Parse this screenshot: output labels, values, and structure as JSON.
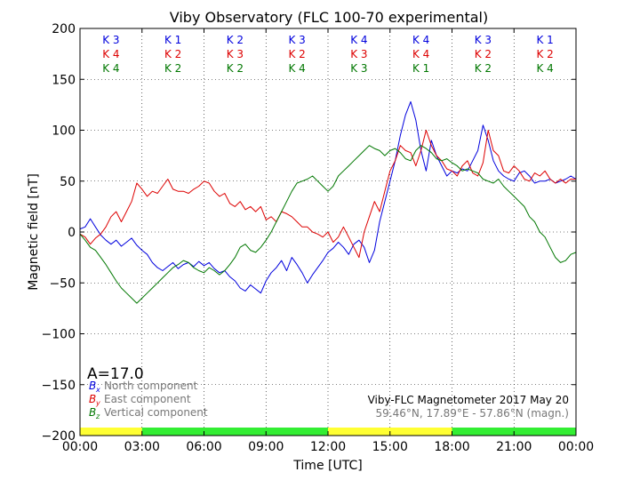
{
  "chart_data": {
    "type": "line",
    "title": "Viby Observatory (FLC 100-70 experimental)",
    "xlabel": "Time [UTC]",
    "ylabel": "Magnetic field [nT]",
    "xlim": [
      0,
      24
    ],
    "ylim": [
      -200,
      200
    ],
    "x_ticks": [
      0,
      3,
      6,
      9,
      12,
      15,
      18,
      21,
      24
    ],
    "x_tick_labels": [
      "00:00",
      "03:00",
      "06:00",
      "09:00",
      "12:00",
      "15:00",
      "18:00",
      "21:00",
      "00:00"
    ],
    "y_ticks": [
      -200,
      -150,
      -100,
      -50,
      0,
      50,
      100,
      150,
      200
    ],
    "y_tick_labels": [
      "−200",
      "−150",
      "−100",
      "−50",
      "0",
      "50",
      "100",
      "150",
      "200"
    ],
    "grid": true,
    "a_index": "A=17.0",
    "legend": [
      {
        "symbol": "B",
        "sub": "x",
        "label": "North component",
        "color": "#0000dd"
      },
      {
        "symbol": "B",
        "sub": "y",
        "label": "East component",
        "color": "#dd0000"
      },
      {
        "symbol": "B",
        "sub": "z",
        "label": "Vertical component",
        "color": "#007700"
      }
    ],
    "footer_line1": "Viby-FLC Magnetometer 2017 May 20",
    "footer_line2": "59.46°N, 17.89°E - 57.86°N (magn.)",
    "k_index": {
      "rows": [
        {
          "component": "x",
          "color": "#0000dd",
          "values": [
            "K 3",
            "K 1",
            "K 2",
            "K 3",
            "K 4",
            "K 4",
            "K 3",
            "K 1"
          ]
        },
        {
          "component": "y",
          "color": "#dd0000",
          "values": [
            "K 4",
            "K 2",
            "K 3",
            "K 2",
            "K 3",
            "K 4",
            "K 2",
            "K 2"
          ]
        },
        {
          "component": "z",
          "color": "#007700",
          "values": [
            "K 4",
            "K 2",
            "K 2",
            "K 4",
            "K 3",
            "K 1",
            "K 2",
            "K 4"
          ]
        }
      ]
    },
    "activity_bar": [
      {
        "from": 0,
        "to": 3,
        "color": "#ffff33"
      },
      {
        "from": 3,
        "to": 12,
        "color": "#33ee33"
      },
      {
        "from": 12,
        "to": 18,
        "color": "#ffff33"
      },
      {
        "from": 18,
        "to": 24,
        "color": "#33ee33"
      }
    ],
    "series": [
      {
        "name": "North component",
        "color": "#0000dd",
        "x": [
          0,
          0.25,
          0.5,
          0.75,
          1,
          1.25,
          1.5,
          1.75,
          2,
          2.25,
          2.5,
          2.75,
          3,
          3.25,
          3.5,
          3.75,
          4,
          4.25,
          4.5,
          4.75,
          5,
          5.25,
          5.5,
          5.75,
          6,
          6.25,
          6.5,
          6.75,
          7,
          7.25,
          7.5,
          7.75,
          8,
          8.25,
          8.5,
          8.75,
          9,
          9.25,
          9.5,
          9.75,
          10,
          10.25,
          10.5,
          10.75,
          11,
          11.25,
          11.5,
          11.75,
          12,
          12.25,
          12.5,
          12.75,
          13,
          13.25,
          13.5,
          13.75,
          14,
          14.25,
          14.5,
          14.75,
          15,
          15.25,
          15.5,
          15.75,
          16,
          16.25,
          16.5,
          16.75,
          17,
          17.25,
          17.5,
          17.75,
          18,
          18.25,
          18.5,
          18.75,
          19,
          19.25,
          19.5,
          19.75,
          20,
          20.25,
          20.5,
          20.75,
          21,
          21.25,
          21.5,
          21.75,
          22,
          22.25,
          22.5,
          22.75,
          23,
          23.25,
          23.5,
          23.75,
          24
        ],
        "y": [
          3,
          5,
          13,
          5,
          -3,
          -8,
          -12,
          -8,
          -14,
          -10,
          -6,
          -13,
          -18,
          -22,
          -30,
          -35,
          -38,
          -34,
          -30,
          -36,
          -32,
          -30,
          -34,
          -29,
          -33,
          -30,
          -36,
          -40,
          -38,
          -44,
          -48,
          -55,
          -58,
          -52,
          -56,
          -60,
          -48,
          -40,
          -35,
          -28,
          -38,
          -25,
          -32,
          -40,
          -50,
          -42,
          -35,
          -28,
          -20,
          -16,
          -10,
          -15,
          -22,
          -12,
          -8,
          -15,
          -30,
          -18,
          10,
          30,
          50,
          70,
          95,
          115,
          128,
          110,
          80,
          60,
          90,
          75,
          65,
          55,
          60,
          58,
          62,
          60,
          70,
          80,
          105,
          90,
          70,
          60,
          55,
          52,
          50,
          58,
          60,
          55,
          48,
          50,
          50,
          52,
          48,
          50,
          52,
          55,
          52
        ],
        "name_visible": false
      },
      {
        "name": "East component",
        "color": "#dd0000",
        "x": [
          0,
          0.25,
          0.5,
          0.75,
          1,
          1.25,
          1.5,
          1.75,
          2,
          2.25,
          2.5,
          2.75,
          3,
          3.25,
          3.5,
          3.75,
          4,
          4.25,
          4.5,
          4.75,
          5,
          5.25,
          5.5,
          5.75,
          6,
          6.25,
          6.5,
          6.75,
          7,
          7.25,
          7.5,
          7.75,
          8,
          8.25,
          8.5,
          8.75,
          9,
          9.25,
          9.5,
          9.75,
          10,
          10.25,
          10.5,
          10.75,
          11,
          11.25,
          11.5,
          11.75,
          12,
          12.25,
          12.5,
          12.75,
          13,
          13.25,
          13.5,
          13.75,
          14,
          14.25,
          14.5,
          14.75,
          15,
          15.25,
          15.5,
          15.75,
          16,
          16.25,
          16.5,
          16.75,
          17,
          17.25,
          17.5,
          17.75,
          18,
          18.25,
          18.5,
          18.75,
          19,
          19.25,
          19.5,
          19.75,
          20,
          20.25,
          20.5,
          20.75,
          21,
          21.25,
          21.5,
          21.75,
          22,
          22.25,
          22.5,
          22.75,
          23,
          23.25,
          23.5,
          23.75,
          24
        ],
        "y": [
          -2,
          -5,
          -12,
          -6,
          -2,
          5,
          15,
          20,
          10,
          20,
          30,
          48,
          42,
          35,
          40,
          38,
          45,
          52,
          42,
          40,
          40,
          38,
          42,
          45,
          50,
          48,
          40,
          35,
          38,
          28,
          25,
          30,
          22,
          25,
          20,
          25,
          12,
          15,
          10,
          20,
          18,
          15,
          10,
          5,
          5,
          0,
          -2,
          -5,
          0,
          -10,
          -5,
          5,
          -5,
          -15,
          -25,
          0,
          15,
          30,
          20,
          40,
          60,
          70,
          85,
          80,
          78,
          65,
          80,
          100,
          85,
          75,
          70,
          62,
          60,
          55,
          65,
          70,
          58,
          55,
          68,
          100,
          80,
          75,
          60,
          58,
          65,
          60,
          52,
          50,
          58,
          55,
          60,
          52,
          48,
          52,
          48,
          52,
          52
        ],
        "name_visible": false
      },
      {
        "name": "Vertical component",
        "color": "#007700",
        "x": [
          0,
          0.25,
          0.5,
          0.75,
          1,
          1.25,
          1.5,
          1.75,
          2,
          2.25,
          2.5,
          2.75,
          3,
          3.25,
          3.5,
          3.75,
          4,
          4.25,
          4.5,
          4.75,
          5,
          5.25,
          5.5,
          5.75,
          6,
          6.25,
          6.5,
          6.75,
          7,
          7.25,
          7.5,
          7.75,
          8,
          8.25,
          8.5,
          8.75,
          9,
          9.25,
          9.5,
          9.75,
          10,
          10.25,
          10.5,
          10.75,
          11,
          11.25,
          11.5,
          11.75,
          12,
          12.25,
          12.5,
          12.75,
          13,
          13.25,
          13.5,
          13.75,
          14,
          14.25,
          14.5,
          14.75,
          15,
          15.25,
          15.5,
          15.75,
          16,
          16.25,
          16.5,
          16.75,
          17,
          17.25,
          17.5,
          17.75,
          18,
          18.25,
          18.5,
          18.75,
          19,
          19.25,
          19.5,
          19.75,
          20,
          20.25,
          20.5,
          20.75,
          21,
          21.25,
          21.5,
          21.75,
          22,
          22.25,
          22.5,
          22.75,
          23,
          23.25,
          23.5,
          23.75,
          24
        ],
        "y": [
          -2,
          -8,
          -15,
          -18,
          -25,
          -32,
          -40,
          -48,
          -55,
          -60,
          -65,
          -70,
          -65,
          -60,
          -55,
          -50,
          -45,
          -40,
          -35,
          -32,
          -28,
          -30,
          -35,
          -38,
          -40,
          -35,
          -38,
          -42,
          -38,
          -32,
          -25,
          -15,
          -12,
          -18,
          -20,
          -15,
          -8,
          0,
          10,
          20,
          30,
          40,
          48,
          50,
          52,
          55,
          50,
          45,
          40,
          45,
          55,
          60,
          65,
          70,
          75,
          80,
          85,
          82,
          80,
          75,
          80,
          82,
          78,
          72,
          70,
          80,
          85,
          82,
          78,
          72,
          70,
          72,
          68,
          65,
          60,
          62,
          60,
          58,
          52,
          50,
          48,
          52,
          45,
          40,
          35,
          30,
          25,
          15,
          10,
          0,
          -5,
          -15,
          -25,
          -30,
          -28,
          -22,
          -20
        ],
        "name_visible": false
      }
    ]
  }
}
